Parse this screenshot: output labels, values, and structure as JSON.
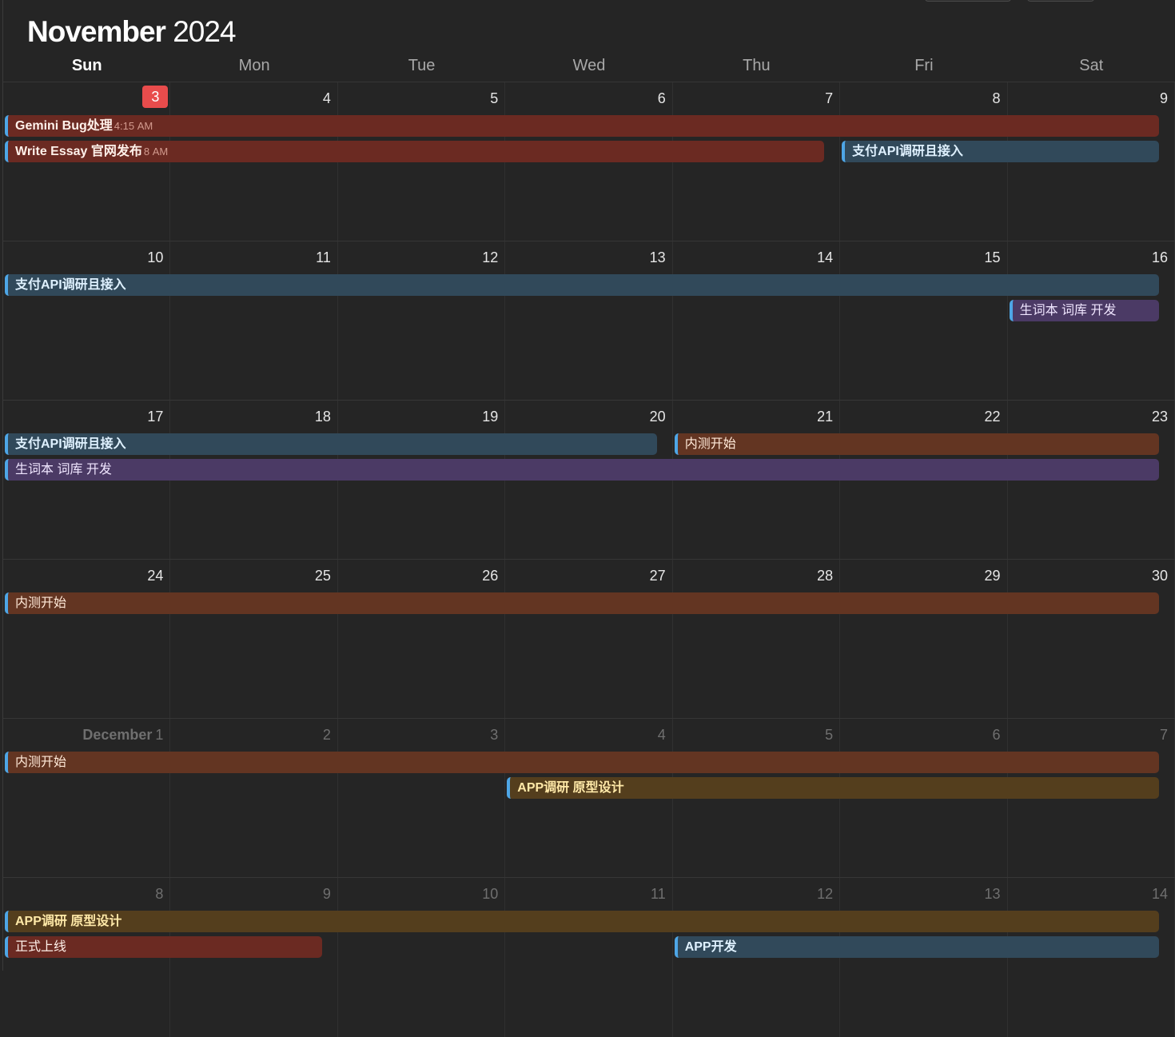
{
  "calendar": {
    "month_label": "November",
    "year_label": "2024",
    "weekdays": [
      "Sun",
      "Mon",
      "Tue",
      "Wed",
      "Thu",
      "Fri",
      "Sat"
    ],
    "today": "3",
    "weeks": [
      {
        "days": [
          {
            "num": "3",
            "today": true
          },
          {
            "num": "4"
          },
          {
            "num": "5"
          },
          {
            "num": "6"
          },
          {
            "num": "7"
          },
          {
            "num": "8"
          },
          {
            "num": "9"
          }
        ],
        "events": [
          {
            "title": "Gemini Bug处理",
            "time": "4:15 AM",
            "start": 0,
            "span": 7,
            "row": 0,
            "color": "red",
            "bold": true
          },
          {
            "title": "Write Essay 官网发布",
            "time": "8 AM",
            "start": 0,
            "span": 5,
            "row": 1,
            "color": "red",
            "bold": true
          },
          {
            "title": "支付API调研且接入",
            "start": 5,
            "span": 2,
            "row": 1,
            "color": "blue",
            "bold": true
          }
        ]
      },
      {
        "days": [
          {
            "num": "10"
          },
          {
            "num": "11"
          },
          {
            "num": "12"
          },
          {
            "num": "13"
          },
          {
            "num": "14"
          },
          {
            "num": "15"
          },
          {
            "num": "16"
          }
        ],
        "events": [
          {
            "title": "支付API调研且接入",
            "start": 0,
            "span": 7,
            "row": 0,
            "color": "blue",
            "bold": true
          },
          {
            "title": "生词本 词库 开发",
            "start": 6,
            "span": 1,
            "row": 1,
            "color": "purple"
          }
        ]
      },
      {
        "days": [
          {
            "num": "17"
          },
          {
            "num": "18"
          },
          {
            "num": "19"
          },
          {
            "num": "20"
          },
          {
            "num": "21"
          },
          {
            "num": "22"
          },
          {
            "num": "23"
          }
        ],
        "events": [
          {
            "title": "支付API调研且接入",
            "start": 0,
            "span": 4,
            "row": 0,
            "color": "blue",
            "bold": true
          },
          {
            "title": "内测开始",
            "start": 4,
            "span": 3,
            "row": 0,
            "color": "brown"
          },
          {
            "title": "生词本 词库 开发",
            "start": 0,
            "span": 7,
            "row": 1,
            "color": "purple"
          }
        ]
      },
      {
        "days": [
          {
            "num": "24"
          },
          {
            "num": "25"
          },
          {
            "num": "26"
          },
          {
            "num": "27"
          },
          {
            "num": "28"
          },
          {
            "num": "29"
          },
          {
            "num": "30"
          }
        ],
        "events": [
          {
            "title": "内测开始",
            "start": 0,
            "span": 7,
            "row": 0,
            "color": "brown"
          }
        ]
      },
      {
        "days": [
          {
            "num": "1",
            "month_label": "December",
            "other": true
          },
          {
            "num": "2",
            "other": true
          },
          {
            "num": "3",
            "other": true
          },
          {
            "num": "4",
            "other": true
          },
          {
            "num": "5",
            "other": true
          },
          {
            "num": "6",
            "other": true
          },
          {
            "num": "7",
            "other": true
          }
        ],
        "events": [
          {
            "title": "内测开始",
            "start": 0,
            "span": 7,
            "row": 0,
            "color": "brown"
          },
          {
            "title": "APP调研 原型设计",
            "start": 3,
            "span": 4,
            "row": 1,
            "color": "gold",
            "bold": true
          }
        ]
      },
      {
        "days": [
          {
            "num": "8",
            "other": true
          },
          {
            "num": "9",
            "other": true
          },
          {
            "num": "10",
            "other": true
          },
          {
            "num": "11",
            "other": true
          },
          {
            "num": "12",
            "other": true
          },
          {
            "num": "13",
            "other": true
          },
          {
            "num": "14",
            "other": true
          }
        ],
        "events": [
          {
            "title": "APP调研 原型设计",
            "start": 0,
            "span": 7,
            "row": 0,
            "color": "gold",
            "bold": true
          },
          {
            "title": "正式上线",
            "start": 0,
            "span": 2,
            "row": 1,
            "color": "red"
          },
          {
            "title": "APP开发",
            "start": 4,
            "span": 3,
            "row": 1,
            "color": "blue",
            "bold": true
          }
        ]
      }
    ]
  },
  "colors": {
    "background": "#252525",
    "today_badge": "#e84c4c",
    "event_accent": "#4ea6e6",
    "red": "#6b2a22",
    "blue": "#31495a",
    "purple": "#4b3a65",
    "brown": "#633522",
    "gold": "#543e1d"
  }
}
